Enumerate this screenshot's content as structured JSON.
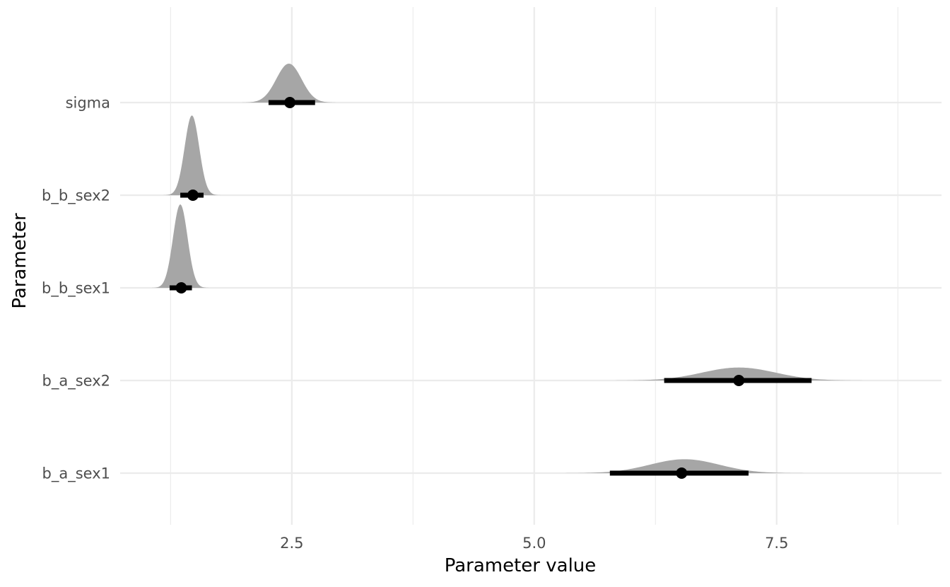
{
  "chart_data": {
    "type": "density-interval",
    "xlabel": "Parameter value",
    "ylabel": "Parameter",
    "xlim": [
      0.73,
      9.2
    ],
    "x_ticks": [
      2.5,
      5.0,
      7.5
    ],
    "x_tick_labels": [
      "2.5",
      "5.0",
      "7.5"
    ],
    "x_minor_ticks": [
      1.25,
      3.75,
      6.25,
      8.75
    ],
    "grid": true,
    "legend": "none",
    "colors": {
      "density": "#a6a6a6",
      "interval": "#000000",
      "grid": "#ebebeb"
    },
    "parameters": [
      {
        "label": "sigma",
        "point": 2.48,
        "lower": 2.26,
        "upper": 2.74,
        "density_mean": 2.47,
        "density_sd": 0.13,
        "density_height": 0.42
      },
      {
        "label": "b_b_sex2",
        "point": 1.48,
        "lower": 1.35,
        "upper": 1.59,
        "density_mean": 1.47,
        "density_sd": 0.075,
        "density_height": 0.86
      },
      {
        "label": "b_b_sex1",
        "point": 1.36,
        "lower": 1.24,
        "upper": 1.47,
        "density_mean": 1.35,
        "density_sd": 0.075,
        "density_height": 0.9
      },
      {
        "label": "b_a_sex2",
        "point": 7.11,
        "lower": 6.34,
        "upper": 7.86,
        "density_mean": 7.11,
        "density_sd": 0.38,
        "density_height": 0.14
      },
      {
        "label": "b_a_sex1",
        "point": 6.52,
        "lower": 5.78,
        "upper": 7.21,
        "density_mean": 6.55,
        "density_sd": 0.36,
        "density_height": 0.15
      }
    ]
  }
}
